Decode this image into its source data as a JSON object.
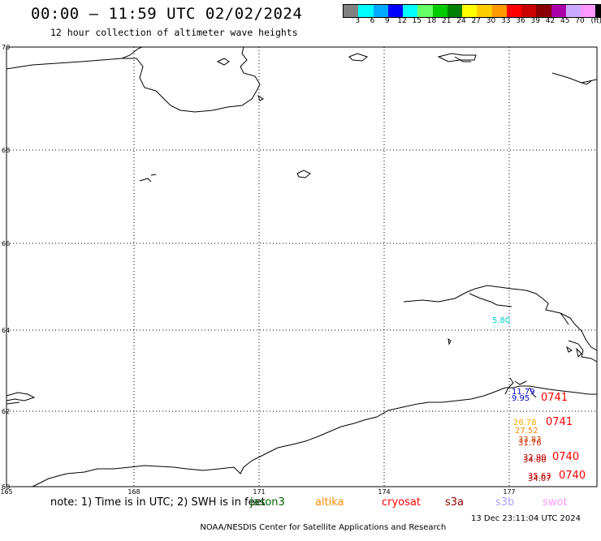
{
  "header": {
    "title": "00:00 – 11:59 UTC 02/02/2024",
    "subtitle": "12 hour collection of altimeter wave heights"
  },
  "colorbar": {
    "colors": [
      "#808080",
      "#00ffff",
      "#00aaff",
      "#0000ff",
      "#00ffff",
      "#66ff66",
      "#00cc00",
      "#008000",
      "#ffff00",
      "#ffcc00",
      "#ff9900",
      "#ff0000",
      "#cc0000",
      "#880000",
      "#aa00aa",
      "#ccaaff",
      "#ff99ff",
      "#000000"
    ],
    "labels": [
      "3",
      "6",
      "9",
      "12",
      "15",
      "18",
      "21",
      "24",
      "27",
      "30",
      "33",
      "36",
      "39",
      "42",
      "45",
      "70",
      "(ft)"
    ]
  },
  "map": {
    "lat_labels": [
      "70",
      "68",
      "66",
      "64",
      "62",
      "60"
    ],
    "lon_labels": [
      "165",
      "168",
      "171",
      "174",
      "177"
    ]
  },
  "observations": [
    {
      "text": "5.80",
      "color": "#00d0d0"
    },
    {
      "text": "11.79",
      "color": "#0000cc"
    },
    {
      "text": "9.95",
      "color": "#0000cc"
    },
    {
      "text": "0741",
      "color": "#ff0000"
    },
    {
      "text": "26.78",
      "color": "#ffaa00"
    },
    {
      "text": "27.52",
      "color": "#ff8800"
    },
    {
      "text": "33.83",
      "color": "#cc4400"
    },
    {
      "text": "31.76",
      "color": "#cc2200"
    },
    {
      "text": "0741",
      "color": "#ff0000"
    },
    {
      "text": "32.90",
      "color": "#cc0000"
    },
    {
      "text": "34.00",
      "color": "#aa0000"
    },
    {
      "text": "0740",
      "color": "#ff0000"
    },
    {
      "text": "35.63",
      "color": "#cc0000"
    },
    {
      "text": "34.07",
      "color": "#aa0000"
    },
    {
      "text": "0740",
      "color": "#ff0000"
    }
  ],
  "notes": "note: 1) Time is in UTC; 2) SWH is in feet",
  "legend": [
    {
      "label": "jason3",
      "color": "#006400"
    },
    {
      "label": "altika",
      "color": "#ff8c00"
    },
    {
      "label": "cryosat",
      "color": "#ff0000"
    },
    {
      "label": "s3a",
      "color": "#8b0000"
    },
    {
      "label": "s3b",
      "color": "#b0a0ff"
    },
    {
      "label": "swot",
      "color": "#ff99ff"
    }
  ],
  "footer": {
    "credit": "NOAA/NESDIS Center for Satellite Applications and Research",
    "timestamp": "13 Dec 23:11:04 UTC 2024"
  }
}
